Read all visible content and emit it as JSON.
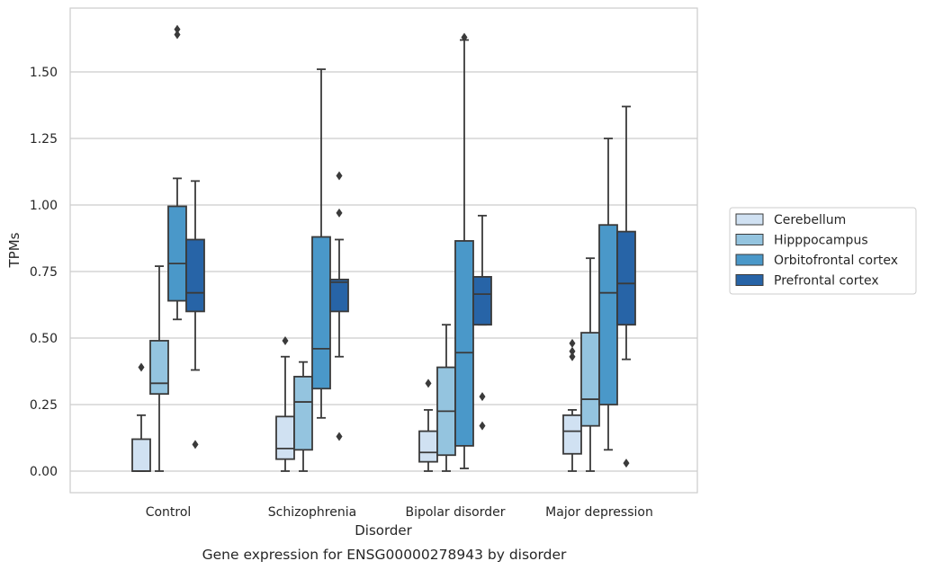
{
  "caption": "Gene expression for ENSG00000278943 by disorder",
  "chart_data": {
    "type": "box",
    "xlabel": "Disorder",
    "ylabel": "TPMs",
    "ylim": [
      -0.08,
      1.75
    ],
    "yticks": [
      "0.00",
      "0.25",
      "0.50",
      "0.75",
      "1.00",
      "1.25",
      "1.50"
    ],
    "categories": [
      "Control",
      "Schizophrenia",
      "Bipolar disorder",
      "Major depression"
    ],
    "grid": "horizontal",
    "legend_position": "right",
    "series": [
      {
        "name": "Cerebellum",
        "color": "#d0e1f2",
        "boxes": [
          {
            "whisker_low": 0.0,
            "q1": 0.0,
            "median": 0.0,
            "q3": 0.12,
            "whisker_high": 0.21,
            "outliers": [
              0.39
            ]
          },
          {
            "whisker_low": 0.0,
            "q1": 0.045,
            "median": 0.085,
            "q3": 0.205,
            "whisker_high": 0.43,
            "outliers": [
              0.49
            ]
          },
          {
            "whisker_low": 0.0,
            "q1": 0.035,
            "median": 0.07,
            "q3": 0.15,
            "whisker_high": 0.23,
            "outliers": [
              0.33
            ]
          },
          {
            "whisker_low": 0.0,
            "q1": 0.065,
            "median": 0.15,
            "q3": 0.21,
            "whisker_high": 0.23,
            "outliers": [
              0.43,
              0.45,
              0.48
            ]
          }
        ]
      },
      {
        "name": "Hipppocampus",
        "color": "#94c4df",
        "boxes": [
          {
            "whisker_low": 0.0,
            "q1": 0.29,
            "median": 0.33,
            "q3": 0.49,
            "whisker_high": 0.77,
            "outliers": []
          },
          {
            "whisker_low": 0.0,
            "q1": 0.08,
            "median": 0.26,
            "q3": 0.355,
            "whisker_high": 0.41,
            "outliers": []
          },
          {
            "whisker_low": 0.0,
            "q1": 0.06,
            "median": 0.225,
            "q3": 0.39,
            "whisker_high": 0.55,
            "outliers": []
          },
          {
            "whisker_low": 0.0,
            "q1": 0.17,
            "median": 0.27,
            "q3": 0.52,
            "whisker_high": 0.8,
            "outliers": []
          }
        ]
      },
      {
        "name": "Orbitofrontal cortex",
        "color": "#4a98c9",
        "boxes": [
          {
            "whisker_low": 0.57,
            "q1": 0.64,
            "median": 0.78,
            "q3": 0.995,
            "whisker_high": 1.1,
            "outliers": [
              1.64,
              1.66
            ]
          },
          {
            "whisker_low": 0.2,
            "q1": 0.31,
            "median": 0.46,
            "q3": 0.88,
            "whisker_high": 1.51,
            "outliers": []
          },
          {
            "whisker_low": 0.01,
            "q1": 0.095,
            "median": 0.445,
            "q3": 0.865,
            "whisker_high": 1.62,
            "outliers": [
              1.63
            ]
          },
          {
            "whisker_low": 0.08,
            "q1": 0.25,
            "median": 0.67,
            "q3": 0.925,
            "whisker_high": 1.25,
            "outliers": []
          }
        ]
      },
      {
        "name": "Prefrontal cortex",
        "color": "#2764a7",
        "boxes": [
          {
            "whisker_low": 0.38,
            "q1": 0.6,
            "median": 0.67,
            "q3": 0.87,
            "whisker_high": 1.09,
            "outliers": [
              0.1
            ]
          },
          {
            "whisker_low": 0.43,
            "q1": 0.6,
            "median": 0.71,
            "q3": 0.72,
            "whisker_high": 0.87,
            "outliers": [
              0.13,
              0.97,
              1.11
            ]
          },
          {
            "whisker_low": 0.55,
            "q1": 0.55,
            "median": 0.665,
            "q3": 0.73,
            "whisker_high": 0.96,
            "outliers": [
              0.17,
              0.28
            ]
          },
          {
            "whisker_low": 0.42,
            "q1": 0.55,
            "median": 0.705,
            "q3": 0.9,
            "whisker_high": 1.37,
            "outliers": [
              0.03
            ]
          }
        ]
      }
    ]
  }
}
